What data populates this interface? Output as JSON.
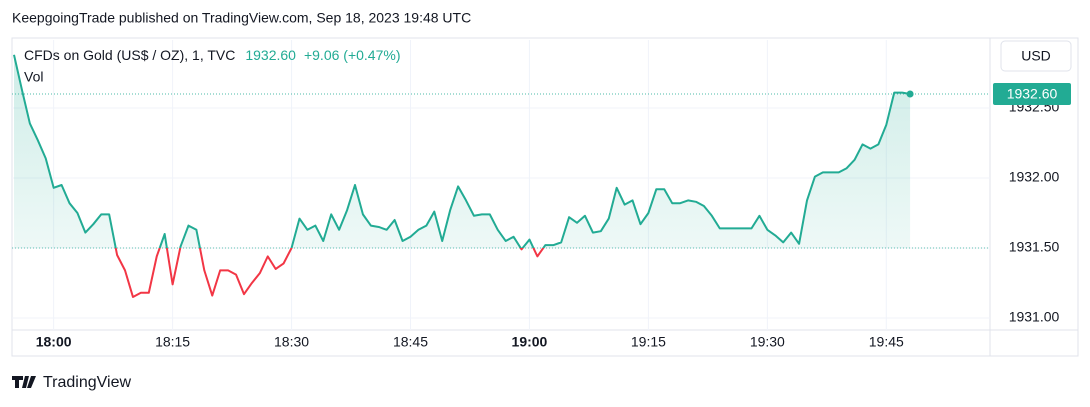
{
  "chart_data": {
    "type": "baseline-line",
    "attribution": "KeepgoingTrade published on TradingView.com, Sep 18, 2023 19:48 UTC",
    "title": "CFDs on Gold (US$ / OZ), 1, TVC",
    "last": {
      "value": 1932.6,
      "label": "1932.60"
    },
    "change": "+9.06 (+0.47%)",
    "volume_label": "Vol",
    "currency": "USD",
    "brand": "TradingView",
    "baseline": 1931.5,
    "up_color": "#22ab94",
    "down_color": "#f23645",
    "grid": true,
    "ylim": [
      1930.914,
      1932.986
    ],
    "yticks": [
      {
        "value": 1931.0,
        "label": "1931.00"
      },
      {
        "value": 1931.5,
        "label": "1931.50"
      },
      {
        "value": 1932.0,
        "label": "1932.00"
      },
      {
        "value": 1932.5,
        "label": "1932.50"
      }
    ],
    "xticks": [
      "18:00",
      "18:15",
      "18:30",
      "18:45",
      "19:00",
      "19:15",
      "19:30",
      "19:45"
    ],
    "x": [
      "17:55",
      "17:56",
      "17:57",
      "17:58",
      "17:59",
      "18:00",
      "18:01",
      "18:02",
      "18:03",
      "18:04",
      "18:05",
      "18:06",
      "18:07",
      "18:08",
      "18:09",
      "18:10",
      "18:11",
      "18:12",
      "18:13",
      "18:14",
      "18:15",
      "18:16",
      "18:17",
      "18:18",
      "18:19",
      "18:20",
      "18:21",
      "18:22",
      "18:23",
      "18:24",
      "18:25",
      "18:26",
      "18:27",
      "18:28",
      "18:29",
      "18:30",
      "18:31",
      "18:32",
      "18:33",
      "18:34",
      "18:35",
      "18:36",
      "18:37",
      "18:38",
      "18:39",
      "18:40",
      "18:41",
      "18:42",
      "18:43",
      "18:44",
      "18:45",
      "18:46",
      "18:47",
      "18:48",
      "18:49",
      "18:50",
      "18:51",
      "18:52",
      "18:53",
      "18:54",
      "18:55",
      "18:56",
      "18:57",
      "18:58",
      "18:59",
      "19:00",
      "19:01",
      "19:02",
      "19:03",
      "19:04",
      "19:05",
      "19:06",
      "19:07",
      "19:08",
      "19:09",
      "19:10",
      "19:11",
      "19:12",
      "19:13",
      "19:14",
      "19:15",
      "19:16",
      "19:17",
      "19:18",
      "19:19",
      "19:20",
      "19:21",
      "19:22",
      "19:23",
      "19:24",
      "19:25",
      "19:26",
      "19:27",
      "19:28",
      "19:29",
      "19:30",
      "19:31",
      "19:32",
      "19:33",
      "19:34",
      "19:35",
      "19:36",
      "19:37",
      "19:38",
      "19:39",
      "19:40",
      "19:41",
      "19:42",
      "19:43",
      "19:44",
      "19:45",
      "19:46",
      "19:47",
      "19:48"
    ],
    "series": [
      {
        "name": "CFDs on Gold",
        "values": [
          1932.88,
          1932.63,
          1932.39,
          1932.27,
          1932.14,
          1931.93,
          1931.95,
          1931.82,
          1931.75,
          1931.61,
          1931.67,
          1931.74,
          1931.74,
          1931.45,
          1931.34,
          1931.15,
          1931.18,
          1931.18,
          1931.44,
          1931.6,
          1931.24,
          1931.51,
          1931.66,
          1931.63,
          1931.34,
          1931.16,
          1931.34,
          1931.34,
          1931.31,
          1931.17,
          1931.25,
          1931.32,
          1931.44,
          1931.35,
          1931.39,
          1931.5,
          1931.71,
          1931.63,
          1931.66,
          1931.55,
          1931.74,
          1931.63,
          1931.77,
          1931.95,
          1931.74,
          1931.66,
          1931.65,
          1931.63,
          1931.7,
          1931.55,
          1931.58,
          1931.63,
          1931.66,
          1931.76,
          1931.55,
          1931.77,
          1931.94,
          1931.84,
          1931.73,
          1931.74,
          1931.74,
          1931.63,
          1931.55,
          1931.58,
          1931.49,
          1931.56,
          1931.44,
          1931.52,
          1931.52,
          1931.54,
          1931.72,
          1931.68,
          1931.73,
          1931.61,
          1931.62,
          1931.71,
          1931.93,
          1931.81,
          1931.84,
          1931.67,
          1931.75,
          1931.92,
          1931.92,
          1931.82,
          1931.82,
          1931.84,
          1931.83,
          1931.8,
          1931.73,
          1931.64,
          1931.64,
          1931.64,
          1931.64,
          1931.64,
          1931.73,
          1931.63,
          1931.59,
          1931.54,
          1931.61,
          1931.53,
          1931.84,
          1932.01,
          1932.04,
          1932.04,
          1932.04,
          1932.07,
          1932.13,
          1932.24,
          1932.21,
          1932.24,
          1932.38,
          1932.61,
          1932.61,
          1932.6
        ]
      }
    ]
  }
}
